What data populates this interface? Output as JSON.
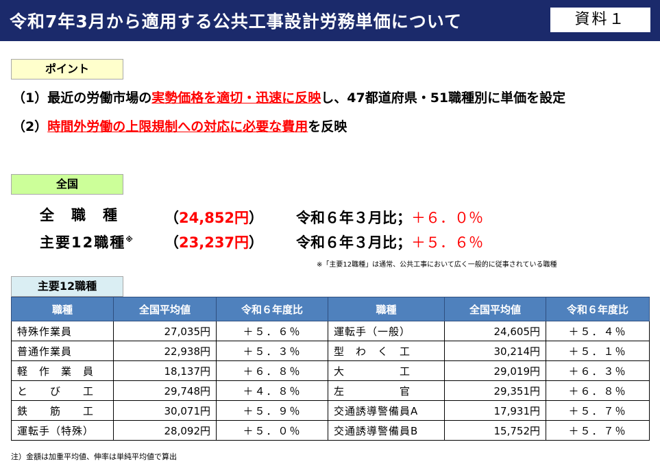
{
  "header": {
    "title": "令和7年3月から適用する公共工事設計労務単価について",
    "ref_label": "資料１"
  },
  "point": {
    "label": "ポイント",
    "items": [
      {
        "prefix": "（1）最近の労働市場の",
        "highlight": "実勢価格を適切・迅速に反映",
        "suffix": "し、47都道府県・51職種別に単価を設定"
      },
      {
        "prefix": "（2）",
        "highlight": "時間外労働の上限規制への対応に必要な費用",
        "suffix": "を反映"
      }
    ]
  },
  "national": {
    "label": "全国",
    "rows": [
      {
        "name": "全　職　種",
        "mark": "",
        "open": "（",
        "value": "24,852円",
        "close": "）",
        "compare_label": "令和６年３月比；",
        "compare_value": "＋６．０％"
      },
      {
        "name": "主要12職種",
        "mark": "※",
        "open": "（",
        "value": "23,237円",
        "close": "）",
        "compare_label": "令和６年３月比；",
        "compare_value": "＋５．６％"
      }
    ],
    "note": "※「主要12職種」は通常、公共工事において広く一般的に従事されている職種"
  },
  "main12": {
    "label": "主要12職種",
    "headers": [
      "職種",
      "全国平均値",
      "令和６年度比",
      "職種",
      "全国平均値",
      "令和６年度比"
    ],
    "rows": [
      {
        "job1": "特殊作業員",
        "avg1": "27,035円",
        "ratio1": "＋５．６％",
        "job2": "運転手（一般）",
        "avg2": "24,605円",
        "ratio2": "＋５．４％"
      },
      {
        "job1": "普通作業員",
        "avg1": "22,938円",
        "ratio1": "＋５．３％",
        "job2": "型　わ　く　工",
        "avg2": "30,214円",
        "ratio2": "＋５．１％"
      },
      {
        "job1": "軽　作　業　員",
        "avg1": "18,137円",
        "ratio1": "＋６．８％",
        "job2": "大　　　　　工",
        "avg2": "29,019円",
        "ratio2": "＋６．３％"
      },
      {
        "job1": "と　　び　　工",
        "avg1": "29,748円",
        "ratio1": "＋４．８％",
        "job2": "左　　　　　官",
        "avg2": "29,351円",
        "ratio2": "＋６．８％"
      },
      {
        "job1": "鉄　　筋　　工",
        "avg1": "30,071円",
        "ratio1": "＋５．９％",
        "job2": "交通誘導警備員A",
        "avg2": "17,931円",
        "ratio2": "＋５．７％"
      },
      {
        "job1": "運転手（特殊）",
        "avg1": "28,092円",
        "ratio1": "＋５．０％",
        "job2": "交通誘導警備員B",
        "avg2": "15,752円",
        "ratio2": "＋５．７％"
      }
    ]
  },
  "footnote": "注）金額は加重平均値、伸率は単純平均値で算出",
  "colors": {
    "header_bg": "#1b2a6b",
    "accent_red": "#ff0000",
    "point_label_bg": "#ffffcc",
    "national_label_bg": "#ccff99",
    "main12_label_bg": "#daeef3",
    "table_header_bg": "#4f81bd"
  }
}
